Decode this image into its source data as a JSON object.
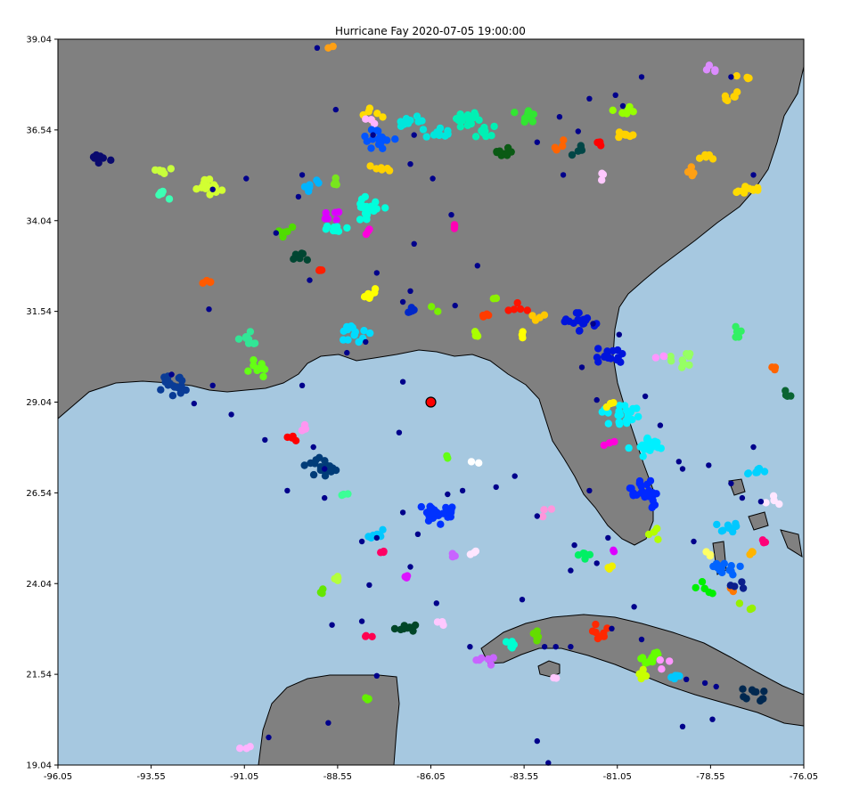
{
  "chart_data": {
    "type": "scatter",
    "title": "Hurricane Fay 2020-07-05 19:00:00",
    "xlabel": "",
    "ylabel": "",
    "xlim": [
      -96.05,
      -76.05
    ],
    "ylim": [
      19.04,
      39.04
    ],
    "x_ticks": [
      "-96.05",
      "-93.55",
      "-91.05",
      "-88.55",
      "-86.05",
      "-83.55",
      "-81.05",
      "-78.55",
      "-76.05"
    ],
    "y_ticks": [
      "19.04",
      "21.54",
      "24.04",
      "26.54",
      "29.04",
      "31.54",
      "34.04",
      "36.54",
      "39.04"
    ],
    "grid": false,
    "legend": "none",
    "colors": {
      "ocean": "#a6c8e0",
      "land": "#808080",
      "coastline": "#000000",
      "storm_center": "#ff0000",
      "isolated_points": "#00008b"
    },
    "storm_center": {
      "lon": -86.05,
      "lat": 29.04
    },
    "clusters": [
      {
        "lon": -94.9,
        "lat": 35.8,
        "color": "#0a0a6e",
        "n": 8
      },
      {
        "lon": -93.3,
        "lat": 35.4,
        "color": "#c8ff3c",
        "n": 6
      },
      {
        "lon": -93.2,
        "lat": 34.8,
        "color": "#3cffb4",
        "n": 5
      },
      {
        "lon": -92.0,
        "lat": 35.0,
        "color": "#d2ff32",
        "n": 14
      },
      {
        "lon": -89.3,
        "lat": 35.0,
        "color": "#00b4ff",
        "n": 6
      },
      {
        "lon": -88.6,
        "lat": 35.1,
        "color": "#78e61e",
        "n": 4
      },
      {
        "lon": -87.6,
        "lat": 37.0,
        "color": "#ffdc00",
        "n": 6
      },
      {
        "lon": -87.7,
        "lat": 36.8,
        "color": "#ffb4ff",
        "n": 3
      },
      {
        "lon": -87.4,
        "lat": 36.3,
        "color": "#0055ff",
        "n": 22
      },
      {
        "lon": -87.4,
        "lat": 35.5,
        "color": "#ffd200",
        "n": 6
      },
      {
        "lon": -86.5,
        "lat": 36.7,
        "color": "#00e6dc",
        "n": 10
      },
      {
        "lon": -85.8,
        "lat": 36.4,
        "color": "#00e6dc",
        "n": 10
      },
      {
        "lon": -85.1,
        "lat": 36.9,
        "color": "#00f0b4",
        "n": 20
      },
      {
        "lon": -84.6,
        "lat": 36.5,
        "color": "#00f0b4",
        "n": 8
      },
      {
        "lon": -83.5,
        "lat": 36.9,
        "color": "#32e632",
        "n": 10
      },
      {
        "lon": -84.1,
        "lat": 35.9,
        "color": "#0a5a14",
        "n": 8
      },
      {
        "lon": -82.5,
        "lat": 36.1,
        "color": "#ff6400",
        "n": 4
      },
      {
        "lon": -82.1,
        "lat": 36.0,
        "color": "#004646",
        "n": 5
      },
      {
        "lon": -81.5,
        "lat": 36.2,
        "color": "#ff0000",
        "n": 4
      },
      {
        "lon": -80.8,
        "lat": 36.4,
        "color": "#ffd200",
        "n": 8
      },
      {
        "lon": -80.9,
        "lat": 37.0,
        "color": "#96ff00",
        "n": 7
      },
      {
        "lon": -81.4,
        "lat": 35.3,
        "color": "#ffc8ff",
        "n": 3
      },
      {
        "lon": -78.5,
        "lat": 38.2,
        "color": "#dc8cff",
        "n": 5
      },
      {
        "lon": -77.6,
        "lat": 38.0,
        "color": "#ffd200",
        "n": 4
      },
      {
        "lon": -78.0,
        "lat": 37.5,
        "color": "#ffd200",
        "n": 6
      },
      {
        "lon": -78.6,
        "lat": 35.8,
        "color": "#ffd200",
        "n": 5
      },
      {
        "lon": -79.1,
        "lat": 35.4,
        "color": "#ffa014",
        "n": 4
      },
      {
        "lon": -77.6,
        "lat": 34.9,
        "color": "#ffdc00",
        "n": 12
      },
      {
        "lon": -88.7,
        "lat": 34.2,
        "color": "#dc00ff",
        "n": 6
      },
      {
        "lon": -87.8,
        "lat": 34.4,
        "color": "#00ffdc",
        "n": 24
      },
      {
        "lon": -88.6,
        "lat": 33.8,
        "color": "#00ffdc",
        "n": 8
      },
      {
        "lon": -87.7,
        "lat": 33.8,
        "color": "#ff00dc",
        "n": 3
      },
      {
        "lon": -89.9,
        "lat": 33.7,
        "color": "#50dc00",
        "n": 5
      },
      {
        "lon": -89.6,
        "lat": 33.0,
        "color": "#004632",
        "n": 6
      },
      {
        "lon": -89.0,
        "lat": 32.7,
        "color": "#ff1e00",
        "n": 4
      },
      {
        "lon": -85.4,
        "lat": 33.9,
        "color": "#ff00b4",
        "n": 3
      },
      {
        "lon": -92.1,
        "lat": 32.4,
        "color": "#ff5a00",
        "n": 4
      },
      {
        "lon": -87.7,
        "lat": 32.0,
        "color": "#ffff00",
        "n": 6
      },
      {
        "lon": -88.1,
        "lat": 30.9,
        "color": "#00dcff",
        "n": 14
      },
      {
        "lon": -91.0,
        "lat": 30.8,
        "color": "#32e696",
        "n": 10
      },
      {
        "lon": -90.6,
        "lat": 30.0,
        "color": "#64ff14",
        "n": 14
      },
      {
        "lon": -92.9,
        "lat": 29.5,
        "color": "#0a3c96",
        "n": 18
      },
      {
        "lon": -86.6,
        "lat": 31.5,
        "color": "#0028c8",
        "n": 6
      },
      {
        "lon": -86.0,
        "lat": 31.6,
        "color": "#78f000",
        "n": 2
      },
      {
        "lon": -84.6,
        "lat": 31.4,
        "color": "#ff3c00",
        "n": 4
      },
      {
        "lon": -83.7,
        "lat": 31.6,
        "color": "#ff1400",
        "n": 5
      },
      {
        "lon": -84.3,
        "lat": 31.9,
        "color": "#8cf000",
        "n": 3
      },
      {
        "lon": -83.2,
        "lat": 31.4,
        "color": "#ffc800",
        "n": 4
      },
      {
        "lon": -83.6,
        "lat": 30.9,
        "color": "#ffff00",
        "n": 3
      },
      {
        "lon": -84.8,
        "lat": 30.9,
        "color": "#aaff00",
        "n": 4
      },
      {
        "lon": -82.0,
        "lat": 31.3,
        "color": "#0014dc",
        "n": 18
      },
      {
        "lon": -81.3,
        "lat": 30.3,
        "color": "#0014dc",
        "n": 16
      },
      {
        "lon": -79.3,
        "lat": 30.2,
        "color": "#96ff64",
        "n": 10
      },
      {
        "lon": -79.8,
        "lat": 30.3,
        "color": "#ff96ff",
        "n": 3
      },
      {
        "lon": -77.9,
        "lat": 31.0,
        "color": "#32f064",
        "n": 5
      },
      {
        "lon": -76.9,
        "lat": 30.0,
        "color": "#ff6400",
        "n": 3
      },
      {
        "lon": -76.5,
        "lat": 29.2,
        "color": "#0a6432",
        "n": 4
      },
      {
        "lon": -81.0,
        "lat": 28.7,
        "color": "#00f0ff",
        "n": 26
      },
      {
        "lon": -80.3,
        "lat": 27.8,
        "color": "#00f0ff",
        "n": 20
      },
      {
        "lon": -81.3,
        "lat": 27.9,
        "color": "#ff00dc",
        "n": 3
      },
      {
        "lon": -81.2,
        "lat": 29.0,
        "color": "#fff000",
        "n": 3
      },
      {
        "lon": -80.3,
        "lat": 26.5,
        "color": "#0028ff",
        "n": 36
      },
      {
        "lon": -77.3,
        "lat": 27.1,
        "color": "#00d2ff",
        "n": 7
      },
      {
        "lon": -76.9,
        "lat": 26.3,
        "color": "#ffe6ff",
        "n": 4
      },
      {
        "lon": -89.0,
        "lat": 27.2,
        "color": "#003c78",
        "n": 20
      },
      {
        "lon": -89.4,
        "lat": 28.4,
        "color": "#ff96f0",
        "n": 4
      },
      {
        "lon": -89.8,
        "lat": 28.1,
        "color": "#ff0000",
        "n": 4
      },
      {
        "lon": -88.4,
        "lat": 26.5,
        "color": "#3cff96",
        "n": 3
      },
      {
        "lon": -86.0,
        "lat": 26.0,
        "color": "#0032ff",
        "n": 30
      },
      {
        "lon": -84.9,
        "lat": 27.4,
        "color": "#ffffff",
        "n": 2
      },
      {
        "lon": -85.6,
        "lat": 27.5,
        "color": "#64ff14",
        "n": 2
      },
      {
        "lon": -82.9,
        "lat": 26.0,
        "color": "#ff96dc",
        "n": 3
      },
      {
        "lon": -87.5,
        "lat": 25.4,
        "color": "#00c8ff",
        "n": 6
      },
      {
        "lon": -87.4,
        "lat": 24.9,
        "color": "#ff0064",
        "n": 3
      },
      {
        "lon": -85.4,
        "lat": 24.8,
        "color": "#c864ff",
        "n": 3
      },
      {
        "lon": -84.9,
        "lat": 24.9,
        "color": "#ffe6ff",
        "n": 3
      },
      {
        "lon": -81.9,
        "lat": 24.9,
        "color": "#00f064",
        "n": 6
      },
      {
        "lon": -81.1,
        "lat": 24.9,
        "color": "#dc00ff",
        "n": 2
      },
      {
        "lon": -81.2,
        "lat": 24.5,
        "color": "#f0f000",
        "n": 3
      },
      {
        "lon": -80.1,
        "lat": 25.4,
        "color": "#b4ff00",
        "n": 4
      },
      {
        "lon": -78.1,
        "lat": 25.6,
        "color": "#00c8ff",
        "n": 10
      },
      {
        "lon": -78.2,
        "lat": 24.5,
        "color": "#0064ff",
        "n": 18
      },
      {
        "lon": -78.6,
        "lat": 24.8,
        "color": "#ffff64",
        "n": 3
      },
      {
        "lon": -77.4,
        "lat": 24.9,
        "color": "#ffb400",
        "n": 3
      },
      {
        "lon": -77.1,
        "lat": 25.2,
        "color": "#ff0078",
        "n": 3
      },
      {
        "lon": -78.7,
        "lat": 23.9,
        "color": "#00f000",
        "n": 6
      },
      {
        "lon": -77.6,
        "lat": 23.4,
        "color": "#96f000",
        "n": 3
      },
      {
        "lon": -78.0,
        "lat": 23.9,
        "color": "#ff7800",
        "n": 2
      },
      {
        "lon": -77.8,
        "lat": 24.0,
        "color": "#0a1e8c",
        "n": 4
      },
      {
        "lon": -89.0,
        "lat": 23.8,
        "color": "#64e600",
        "n": 4
      },
      {
        "lon": -88.5,
        "lat": 24.2,
        "color": "#b4ff3c",
        "n": 4
      },
      {
        "lon": -86.7,
        "lat": 24.2,
        "color": "#dc14ff",
        "n": 3
      },
      {
        "lon": -87.8,
        "lat": 22.6,
        "color": "#ff0050",
        "n": 3
      },
      {
        "lon": -86.8,
        "lat": 22.8,
        "color": "#004628",
        "n": 10
      },
      {
        "lon": -85.7,
        "lat": 22.9,
        "color": "#ffc8ff",
        "n": 3
      },
      {
        "lon": -84.6,
        "lat": 21.9,
        "color": "#c864ff",
        "n": 6
      },
      {
        "lon": -83.9,
        "lat": 22.3,
        "color": "#00ffd2",
        "n": 6
      },
      {
        "lon": -83.3,
        "lat": 22.6,
        "color": "#64dc00",
        "n": 5
      },
      {
        "lon": -82.7,
        "lat": 21.4,
        "color": "#ffc8ff",
        "n": 2
      },
      {
        "lon": -81.6,
        "lat": 22.7,
        "color": "#ff2800",
        "n": 8
      },
      {
        "lon": -80.1,
        "lat": 22.0,
        "color": "#64ff00",
        "n": 12
      },
      {
        "lon": -80.3,
        "lat": 21.5,
        "color": "#c8ff00",
        "n": 6
      },
      {
        "lon": -79.5,
        "lat": 21.5,
        "color": "#00c8ff",
        "n": 5
      },
      {
        "lon": -79.8,
        "lat": 21.8,
        "color": "#ff96ff",
        "n": 3
      },
      {
        "lon": -77.4,
        "lat": 21.0,
        "color": "#002850",
        "n": 10
      },
      {
        "lon": -87.8,
        "lat": 20.9,
        "color": "#64f000",
        "n": 3
      },
      {
        "lon": -91.0,
        "lat": 19.6,
        "color": "#ffb4ff",
        "n": 3
      },
      {
        "lon": -88.8,
        "lat": 38.8,
        "color": "#ffa014",
        "n": 2
      }
    ],
    "isolated_points": [
      [
        -89.1,
        38.8
      ],
      [
        -88.6,
        37.1
      ],
      [
        -87.6,
        36.4
      ],
      [
        -86.5,
        36.4
      ],
      [
        -86.6,
        35.6
      ],
      [
        -86.0,
        35.2
      ],
      [
        -85.5,
        34.2
      ],
      [
        -86.5,
        33.4
      ],
      [
        -89.6,
        34.7
      ],
      [
        -91.9,
        34.9
      ],
      [
        -91.0,
        35.2
      ],
      [
        -89.5,
        35.3
      ],
      [
        -90.2,
        33.7
      ],
      [
        -89.3,
        32.4
      ],
      [
        -92.0,
        31.6
      ],
      [
        -89.5,
        29.5
      ],
      [
        -86.8,
        31.8
      ],
      [
        -86.6,
        32.1
      ],
      [
        -85.4,
        31.7
      ],
      [
        -84.8,
        32.8
      ],
      [
        -87.5,
        32.6
      ],
      [
        -82.6,
        36.9
      ],
      [
        -82.1,
        36.5
      ],
      [
        -82.5,
        35.3
      ],
      [
        -81.8,
        37.4
      ],
      [
        -81.1,
        37.5
      ],
      [
        -80.9,
        37.2
      ],
      [
        -83.2,
        36.2
      ],
      [
        -80.4,
        38.0
      ],
      [
        -78.0,
        38.0
      ],
      [
        -77.4,
        35.3
      ],
      [
        -81.7,
        31.2
      ],
      [
        -82.0,
        30.0
      ],
      [
        -81.6,
        29.1
      ],
      [
        -81.0,
        30.9
      ],
      [
        -80.3,
        29.2
      ],
      [
        -79.9,
        28.4
      ],
      [
        -79.4,
        27.4
      ],
      [
        -78.6,
        27.3
      ],
      [
        -79.3,
        27.2
      ],
      [
        -77.7,
        26.4
      ],
      [
        -77.2,
        26.3
      ],
      [
        -78.0,
        26.8
      ],
      [
        -77.4,
        27.8
      ],
      [
        -79.0,
        25.2
      ],
      [
        -82.3,
        24.4
      ],
      [
        -82.2,
        25.1
      ],
      [
        -81.3,
        25.3
      ],
      [
        -81.6,
        24.6
      ],
      [
        -81.8,
        26.6
      ],
      [
        -83.2,
        25.9
      ],
      [
        -84.3,
        26.7
      ],
      [
        -83.8,
        27.0
      ],
      [
        -85.6,
        26.5
      ],
      [
        -86.4,
        25.4
      ],
      [
        -87.5,
        25.3
      ],
      [
        -87.9,
        25.2
      ],
      [
        -88.9,
        26.4
      ],
      [
        -88.9,
        27.2
      ],
      [
        -89.9,
        26.6
      ],
      [
        -90.5,
        28.0
      ],
      [
        -89.2,
        27.8
      ],
      [
        -91.4,
        28.7
      ],
      [
        -86.9,
        28.2
      ],
      [
        -86.6,
        24.5
      ],
      [
        -87.7,
        24.0
      ],
      [
        -88.7,
        22.9
      ],
      [
        -87.9,
        23.0
      ],
      [
        -85.9,
        23.5
      ],
      [
        -85.0,
        22.3
      ],
      [
        -83.6,
        23.6
      ],
      [
        -82.3,
        22.3
      ],
      [
        -81.2,
        22.8
      ],
      [
        -80.4,
        22.5
      ],
      [
        -79.2,
        21.4
      ],
      [
        -78.7,
        21.3
      ],
      [
        -78.4,
        21.2
      ],
      [
        -78.5,
        20.3
      ],
      [
        -79.3,
        20.1
      ],
      [
        -82.7,
        22.3
      ],
      [
        -87.5,
        21.5
      ],
      [
        -88.8,
        20.2
      ],
      [
        -90.4,
        19.8
      ],
      [
        -83.2,
        19.7
      ],
      [
        -82.9,
        19.1
      ],
      [
        -83.0,
        22.3
      ],
      [
        -80.6,
        23.4
      ],
      [
        -86.8,
        26.0
      ],
      [
        -85.2,
        26.6
      ],
      [
        -93.0,
        29.8
      ],
      [
        -91.9,
        29.5
      ],
      [
        -92.4,
        29.0
      ],
      [
        -86.8,
        29.6
      ],
      [
        -88.3,
        30.4
      ],
      [
        -87.8,
        30.7
      ]
    ]
  }
}
